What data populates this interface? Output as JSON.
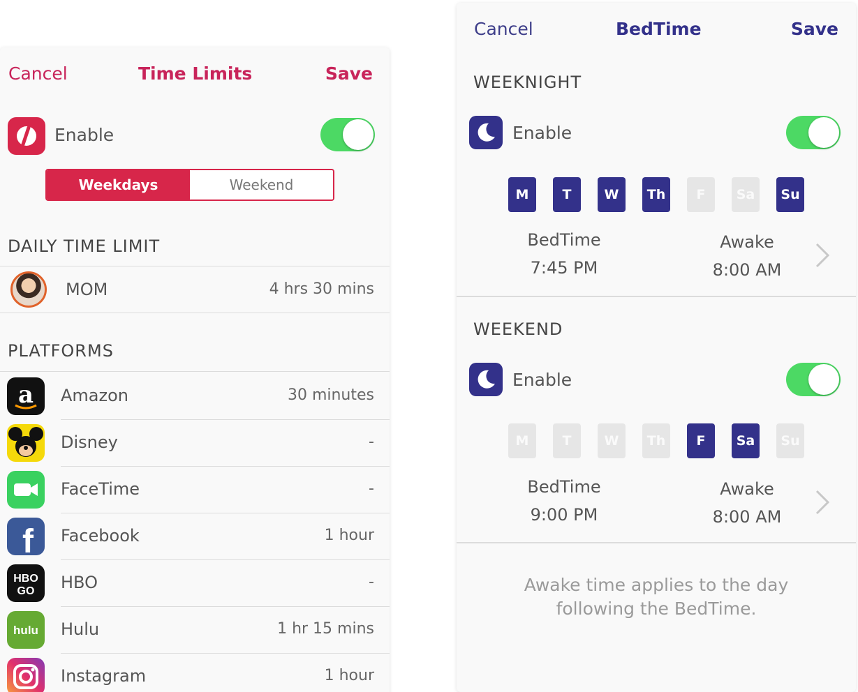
{
  "time_limits": {
    "nav": {
      "cancel": "Cancel",
      "title": "Time Limits",
      "save": "Save"
    },
    "enable_label": "Enable",
    "enabled": true,
    "tabs": [
      {
        "label": "Weekdays",
        "active": true
      },
      {
        "label": "Weekend",
        "active": false
      }
    ],
    "daily_header": "DAILY TIME LIMIT",
    "user": {
      "name": "MOM",
      "limit": "4 hrs 30 mins"
    },
    "platforms_header": "PLATFORMS",
    "platforms": [
      {
        "name": "Amazon",
        "limit": "30 minutes",
        "icon": "amazon-icon"
      },
      {
        "name": "Disney",
        "limit": "-",
        "icon": "disney-icon"
      },
      {
        "name": "FaceTime",
        "limit": "-",
        "icon": "facetime-icon"
      },
      {
        "name": "Facebook",
        "limit": "1 hour",
        "icon": "facebook-icon"
      },
      {
        "name": "HBO",
        "limit": "-",
        "icon": "hbo-go-icon",
        "icon_text": [
          "HBO",
          "GO"
        ]
      },
      {
        "name": "Hulu",
        "limit": "1 hr 15 mins",
        "icon": "hulu-icon",
        "icon_text": "hulu"
      },
      {
        "name": "Instagram",
        "limit": "1 hour",
        "icon": "instagram-icon"
      }
    ],
    "colors": {
      "accent": "#d7264a",
      "toggle_on": "#4cd964"
    }
  },
  "bedtime": {
    "nav": {
      "cancel": "Cancel",
      "title": "BedTime",
      "save": "Save"
    },
    "weeknight": {
      "header": "WEEKNIGHT",
      "enable_label": "Enable",
      "enabled": true,
      "days": [
        {
          "label": "M",
          "on": true
        },
        {
          "label": "T",
          "on": true
        },
        {
          "label": "W",
          "on": true
        },
        {
          "label": "Th",
          "on": true
        },
        {
          "label": "F",
          "on": false
        },
        {
          "label": "Sa",
          "on": false
        },
        {
          "label": "Su",
          "on": true
        }
      ],
      "bedtime_label": "BedTime",
      "bedtime_value": "7:45 PM",
      "awake_label": "Awake",
      "awake_value": "8:00 AM"
    },
    "weekend": {
      "header": "WEEKEND",
      "enable_label": "Enable",
      "enabled": true,
      "days": [
        {
          "label": "M",
          "on": false
        },
        {
          "label": "T",
          "on": false
        },
        {
          "label": "W",
          "on": false
        },
        {
          "label": "Th",
          "on": false
        },
        {
          "label": "F",
          "on": true
        },
        {
          "label": "Sa",
          "on": true
        },
        {
          "label": "Su",
          "on": false
        }
      ],
      "bedtime_label": "BedTime",
      "bedtime_value": "9:00 PM",
      "awake_label": "Awake",
      "awake_value": "8:00 AM"
    },
    "note": "Awake time applies to the day following the BedTime.",
    "colors": {
      "accent": "#33318a",
      "day_off": "#e6e6e6",
      "toggle_on": "#4cd964"
    }
  }
}
